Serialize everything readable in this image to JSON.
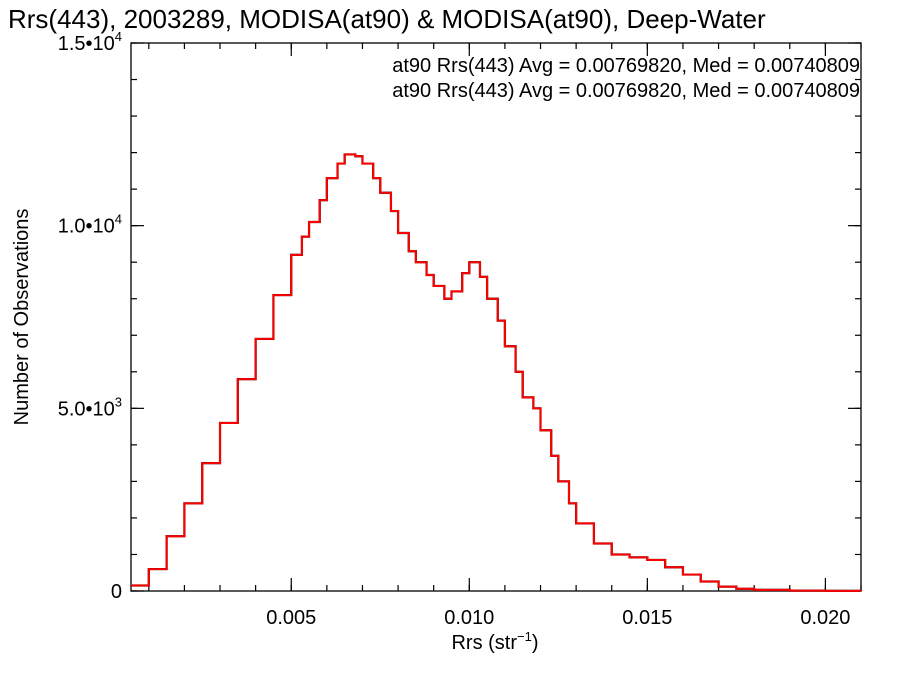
{
  "chart_data": {
    "type": "line",
    "title": "Rrs(443), 2003289, MODISA(at90) & MODISA(at90), Deep-Water",
    "xlabel_base": "Rrs (str",
    "xlabel_sup": "−1",
    "xlabel_end": ")",
    "ylabel": "Number of Observations",
    "xlim": [
      0.0005,
      0.021
    ],
    "ylim": [
      0,
      15000
    ],
    "xticks": [
      {
        "v": 0.005,
        "label": "0.005"
      },
      {
        "v": 0.01,
        "label": "0.010"
      },
      {
        "v": 0.015,
        "label": "0.015"
      },
      {
        "v": 0.02,
        "label": "0.020"
      }
    ],
    "yticks": [
      {
        "v": 0,
        "base": "0",
        "sup": ""
      },
      {
        "v": 5000,
        "base": "5.0•10",
        "sup": "3"
      },
      {
        "v": 10000,
        "base": "1.0•10",
        "sup": "4"
      },
      {
        "v": 15000,
        "base": "1.5•10",
        "sup": "4"
      }
    ],
    "xminor_step": 0.001,
    "yminor_step": 1000,
    "annotations": [
      {
        "text": "at90 Rrs(443) Avg = 0.00769820, Med = 0.00740809",
        "color": "#000000"
      },
      {
        "text": "at90 Rrs(443) Avg = 0.00769820, Med = 0.00740809",
        "color": "#ff0000"
      }
    ],
    "series": [
      {
        "color_a": "#000000",
        "color_b": "#ff0000",
        "x": [
          0.0005,
          0.001,
          0.0015,
          0.002,
          0.0025,
          0.003,
          0.0035,
          0.004,
          0.0045,
          0.005,
          0.0053,
          0.0055,
          0.0058,
          0.006,
          0.0063,
          0.0065,
          0.0068,
          0.007,
          0.0073,
          0.0075,
          0.0078,
          0.008,
          0.0083,
          0.0085,
          0.0088,
          0.009,
          0.0093,
          0.0095,
          0.0098,
          0.01,
          0.0103,
          0.0105,
          0.0108,
          0.011,
          0.0113,
          0.0115,
          0.0118,
          0.012,
          0.0123,
          0.0125,
          0.0128,
          0.013,
          0.0135,
          0.014,
          0.0145,
          0.015,
          0.0155,
          0.016,
          0.0165,
          0.017,
          0.0175,
          0.018,
          0.019,
          0.02,
          0.021
        ],
        "y": [
          150,
          600,
          1500,
          2400,
          3500,
          4600,
          5800,
          6900,
          8100,
          9200,
          9700,
          10100,
          10700,
          11300,
          11700,
          11950,
          11900,
          11700,
          11300,
          10900,
          10400,
          9800,
          9300,
          9000,
          8650,
          8350,
          8000,
          8200,
          8700,
          9000,
          8600,
          8000,
          7400,
          6700,
          6000,
          5300,
          5000,
          4400,
          3700,
          3000,
          2400,
          1850,
          1300,
          1000,
          920,
          850,
          650,
          450,
          260,
          120,
          60,
          30,
          10,
          5,
          0
        ]
      }
    ]
  }
}
